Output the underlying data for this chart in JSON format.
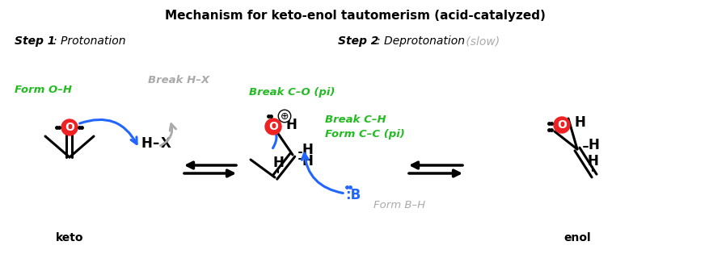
{
  "title": "Mechanism for keto-enol tautomerism (acid-catalyzed)",
  "step1_bold": "Step 1",
  "step1_italic": ": Protonation",
  "step2_bold": "Step 2",
  "step2_italic": ": Deprotonation",
  "step2_slow": " (slow)",
  "form_oh": "Form O–H",
  "break_hx": "Break H–X",
  "break_co": "Break C–O (pi)",
  "break_ch": "Break C–H",
  "form_cc": "Form C–C (pi)",
  "form_bh": "Form B–H",
  "keto": "keto",
  "enol": "enol",
  "bg": "#ffffff",
  "G": "#22bb22",
  "GR": "#aaaaaa",
  "BL": "#2266ff",
  "RD": "#ee2222",
  "BK": "#000000"
}
